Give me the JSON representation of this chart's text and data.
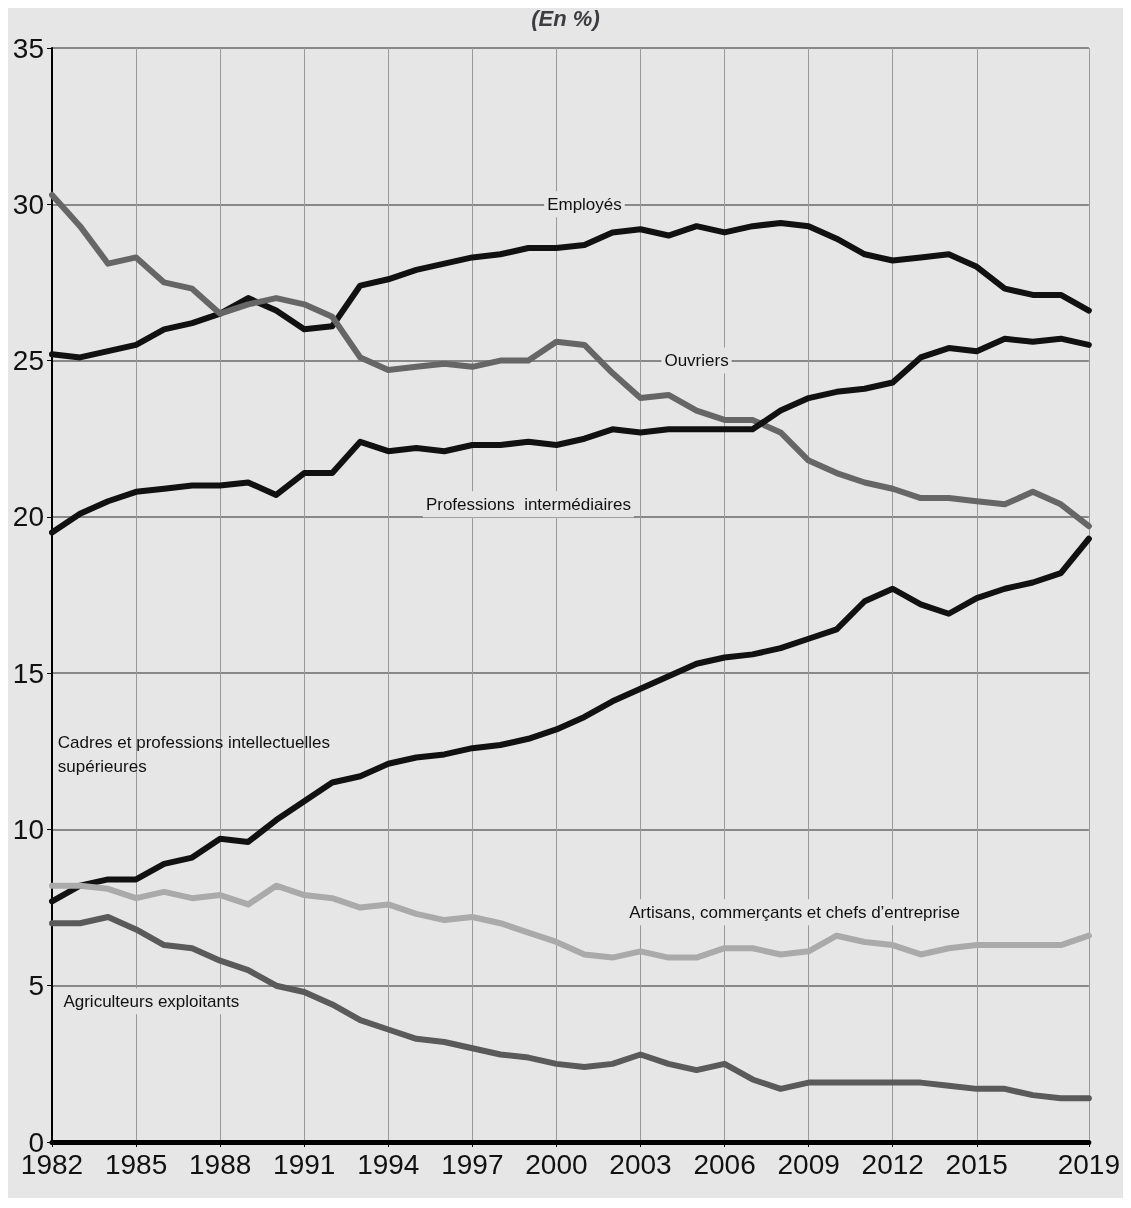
{
  "chart_data": {
    "type": "line",
    "title": "(En %)",
    "x": [
      1982,
      1983,
      1984,
      1985,
      1986,
      1987,
      1988,
      1989,
      1990,
      1991,
      1992,
      1993,
      1994,
      1995,
      1996,
      1997,
      1998,
      1999,
      2000,
      2001,
      2002,
      2003,
      2004,
      2005,
      2006,
      2007,
      2008,
      2009,
      2010,
      2011,
      2012,
      2013,
      2014,
      2015,
      2016,
      2017,
      2018,
      2019
    ],
    "series": [
      {
        "name": "Employés",
        "color": "#111111",
        "values": [
          25.2,
          25.1,
          25.3,
          25.5,
          26.0,
          26.2,
          26.5,
          27.0,
          26.6,
          26.0,
          26.1,
          27.4,
          27.6,
          27.9,
          28.1,
          28.3,
          28.4,
          28.6,
          28.6,
          28.7,
          29.1,
          29.2,
          29.0,
          29.3,
          29.1,
          29.3,
          29.4,
          29.3,
          28.9,
          28.4,
          28.2,
          28.3,
          28.4,
          28.0,
          27.3,
          27.1,
          27.1,
          26.6
        ]
      },
      {
        "name": "Ouvriers",
        "color": "#666666",
        "values": [
          30.3,
          29.3,
          28.1,
          28.3,
          27.5,
          27.3,
          26.5,
          26.8,
          27.0,
          26.8,
          26.4,
          25.1,
          24.7,
          24.8,
          24.9,
          24.8,
          25.0,
          25.0,
          25.6,
          25.5,
          24.6,
          23.8,
          23.9,
          23.4,
          23.1,
          23.1,
          22.7,
          21.8,
          21.4,
          21.1,
          20.9,
          20.6,
          20.6,
          20.5,
          20.4,
          20.8,
          20.4,
          19.7
        ]
      },
      {
        "name": "Professions  intermédiaires",
        "color": "#111111",
        "values": [
          19.5,
          20.1,
          20.5,
          20.8,
          20.9,
          21.0,
          21.0,
          21.1,
          20.7,
          21.4,
          21.4,
          22.4,
          22.1,
          22.2,
          22.1,
          22.3,
          22.3,
          22.4,
          22.3,
          22.5,
          22.8,
          22.7,
          22.8,
          22.8,
          22.8,
          22.8,
          23.4,
          23.8,
          24.0,
          24.1,
          24.3,
          25.1,
          25.4,
          25.3,
          25.7,
          25.6,
          25.7,
          25.5
        ]
      },
      {
        "name": "Cadres et professions intellectuelles\nsupérieures",
        "color": "#111111",
        "values": [
          7.7,
          8.2,
          8.4,
          8.4,
          8.9,
          9.1,
          9.7,
          9.6,
          10.3,
          10.9,
          11.5,
          11.7,
          12.1,
          12.3,
          12.4,
          12.6,
          12.7,
          12.9,
          13.2,
          13.6,
          14.1,
          14.5,
          14.9,
          15.3,
          15.5,
          15.6,
          15.8,
          16.1,
          16.4,
          17.3,
          17.7,
          17.2,
          16.9,
          17.4,
          17.7,
          17.9,
          18.2,
          19.3
        ]
      },
      {
        "name": "Artisans, commerçants et chefs d’entreprise",
        "color": "#aaaaaa",
        "values": [
          8.2,
          8.2,
          8.1,
          7.8,
          8.0,
          7.8,
          7.9,
          7.6,
          8.2,
          7.9,
          7.8,
          7.5,
          7.6,
          7.3,
          7.1,
          7.2,
          7.0,
          6.7,
          6.4,
          6.0,
          5.9,
          6.1,
          5.9,
          5.9,
          6.2,
          6.2,
          6.0,
          6.1,
          6.6,
          6.4,
          6.3,
          6.0,
          6.2,
          6.3,
          6.3,
          6.3,
          6.3,
          6.6
        ]
      },
      {
        "name": "Agriculteurs exploitants",
        "color": "#5a5a5a",
        "values": [
          7.0,
          7.0,
          7.2,
          6.8,
          6.3,
          6.2,
          5.8,
          5.5,
          5.0,
          4.8,
          4.4,
          3.9,
          3.6,
          3.3,
          3.2,
          3.0,
          2.8,
          2.7,
          2.5,
          2.4,
          2.5,
          2.8,
          2.5,
          2.3,
          2.5,
          2.0,
          1.7,
          1.9,
          1.9,
          1.9,
          1.9,
          1.9,
          1.8,
          1.7,
          1.7,
          1.5,
          1.4,
          1.4
        ]
      }
    ],
    "xlim": [
      1982,
      2019
    ],
    "xticks": [
      1982,
      1985,
      1988,
      1991,
      1994,
      1997,
      2000,
      2003,
      2006,
      2009,
      2012,
      2015,
      2019
    ],
    "ylim": [
      0,
      35
    ],
    "yticks": [
      0,
      5,
      10,
      15,
      20,
      25,
      30,
      35
    ],
    "grid": true,
    "legend": false,
    "marker": "none",
    "line_style": "solid"
  }
}
